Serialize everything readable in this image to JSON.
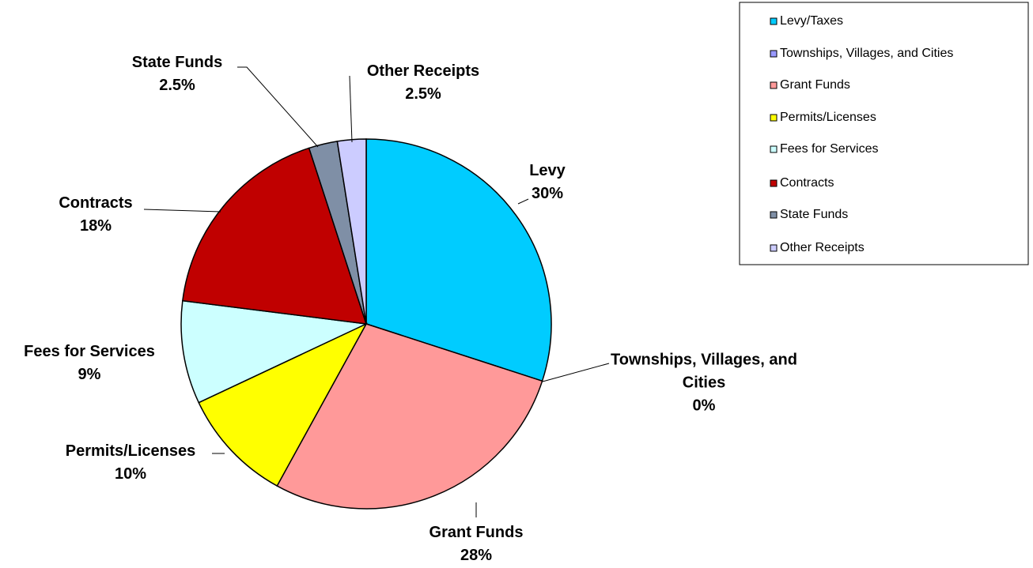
{
  "chart_data": {
    "type": "pie",
    "categories": [
      "Levy/Taxes",
      "Townships, Villages, and Cities",
      "Grant Funds",
      "Permits/Licenses",
      "Fees for Services",
      "Contracts",
      "State Funds",
      "Other Receipts"
    ],
    "labels": [
      "Levy",
      "Townships, Villages, and Cities",
      "Grant Funds",
      "Permits/Licenses",
      "Fees for Services",
      "Contracts",
      "State Funds",
      "Other Receipts"
    ],
    "values": [
      30,
      0,
      28,
      10,
      9,
      18,
      2.5,
      2.5
    ],
    "value_labels": [
      "30%",
      "0%",
      "28%",
      "10%",
      "9%",
      "18%",
      "2.5%",
      "2.5%"
    ],
    "colors": [
      "#00ccff",
      "#9999ff",
      "#ff9999",
      "#ffff00",
      "#ccffff",
      "#c00000",
      "#7f8fa6",
      "#ccccff"
    ],
    "legend": "top-right"
  }
}
